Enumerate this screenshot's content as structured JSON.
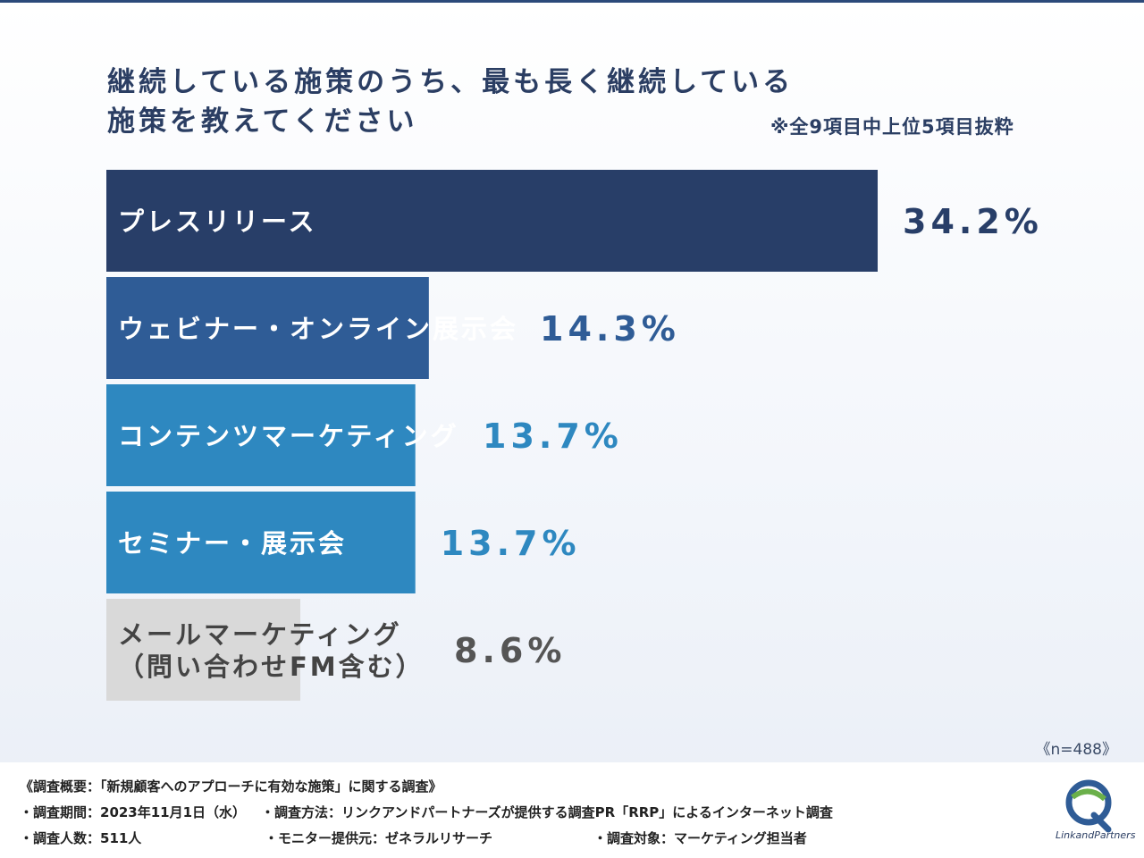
{
  "title": {
    "line1": "継続している施策のうち、最も長く継続している",
    "line2": "施策を教えてください"
  },
  "note": "※全9項目中上位5項目抜粋",
  "sample": "《n=488》",
  "chart_data": {
    "type": "bar",
    "orientation": "horizontal",
    "title": "継続している施策のうち、最も長く継続している施策を教えてください",
    "xlim": [
      0,
      34.2
    ],
    "categories": [
      "プレスリリース",
      "ウェビナー・オンライン展示会",
      "コンテンツマーケティング",
      "セミナー・展示会",
      "メールマーケティング（問い合わせFM含む）"
    ],
    "label_lines": [
      [
        "プレスリリース"
      ],
      [
        "ウェビナー・オンライン展示会"
      ],
      [
        "コンテンツマーケティング"
      ],
      [
        "セミナー・展示会"
      ],
      [
        "メールマーケティング",
        "（問い合わせFM含む）"
      ]
    ],
    "values": [
      34.2,
      14.3,
      13.7,
      13.7,
      8.6
    ],
    "value_labels": [
      "34.2%",
      "14.3%",
      "13.7%",
      "13.7%",
      "8.6%"
    ],
    "colors": [
      "#283e68",
      "#2f5c96",
      "#2e88c0",
      "#2e88c0",
      "#d9d9d9"
    ],
    "label_colors": [
      "#ffffff",
      "#ffffff",
      "#ffffff",
      "#ffffff",
      "#444444"
    ],
    "value_colors": [
      "#283e68",
      "#2f5c96",
      "#2e88c0",
      "#2e88c0",
      "#555555"
    ]
  },
  "footer": {
    "summary": "《調査概要：「新規顧客へのアプローチに有効な施策」に関する調査》",
    "period": "・調査期間：2023年11月1日（水）",
    "method": "・調査方法：リンクアンドパートナーズが提供する調査PR「RRP」によるインターネット調査",
    "count": "・調査人数：511人",
    "provider": "・モニター提供元：ゼネラルリサーチ",
    "target": "・調査対象：マーケティング担当者"
  },
  "logo": {
    "text": "LinkandPartners"
  }
}
